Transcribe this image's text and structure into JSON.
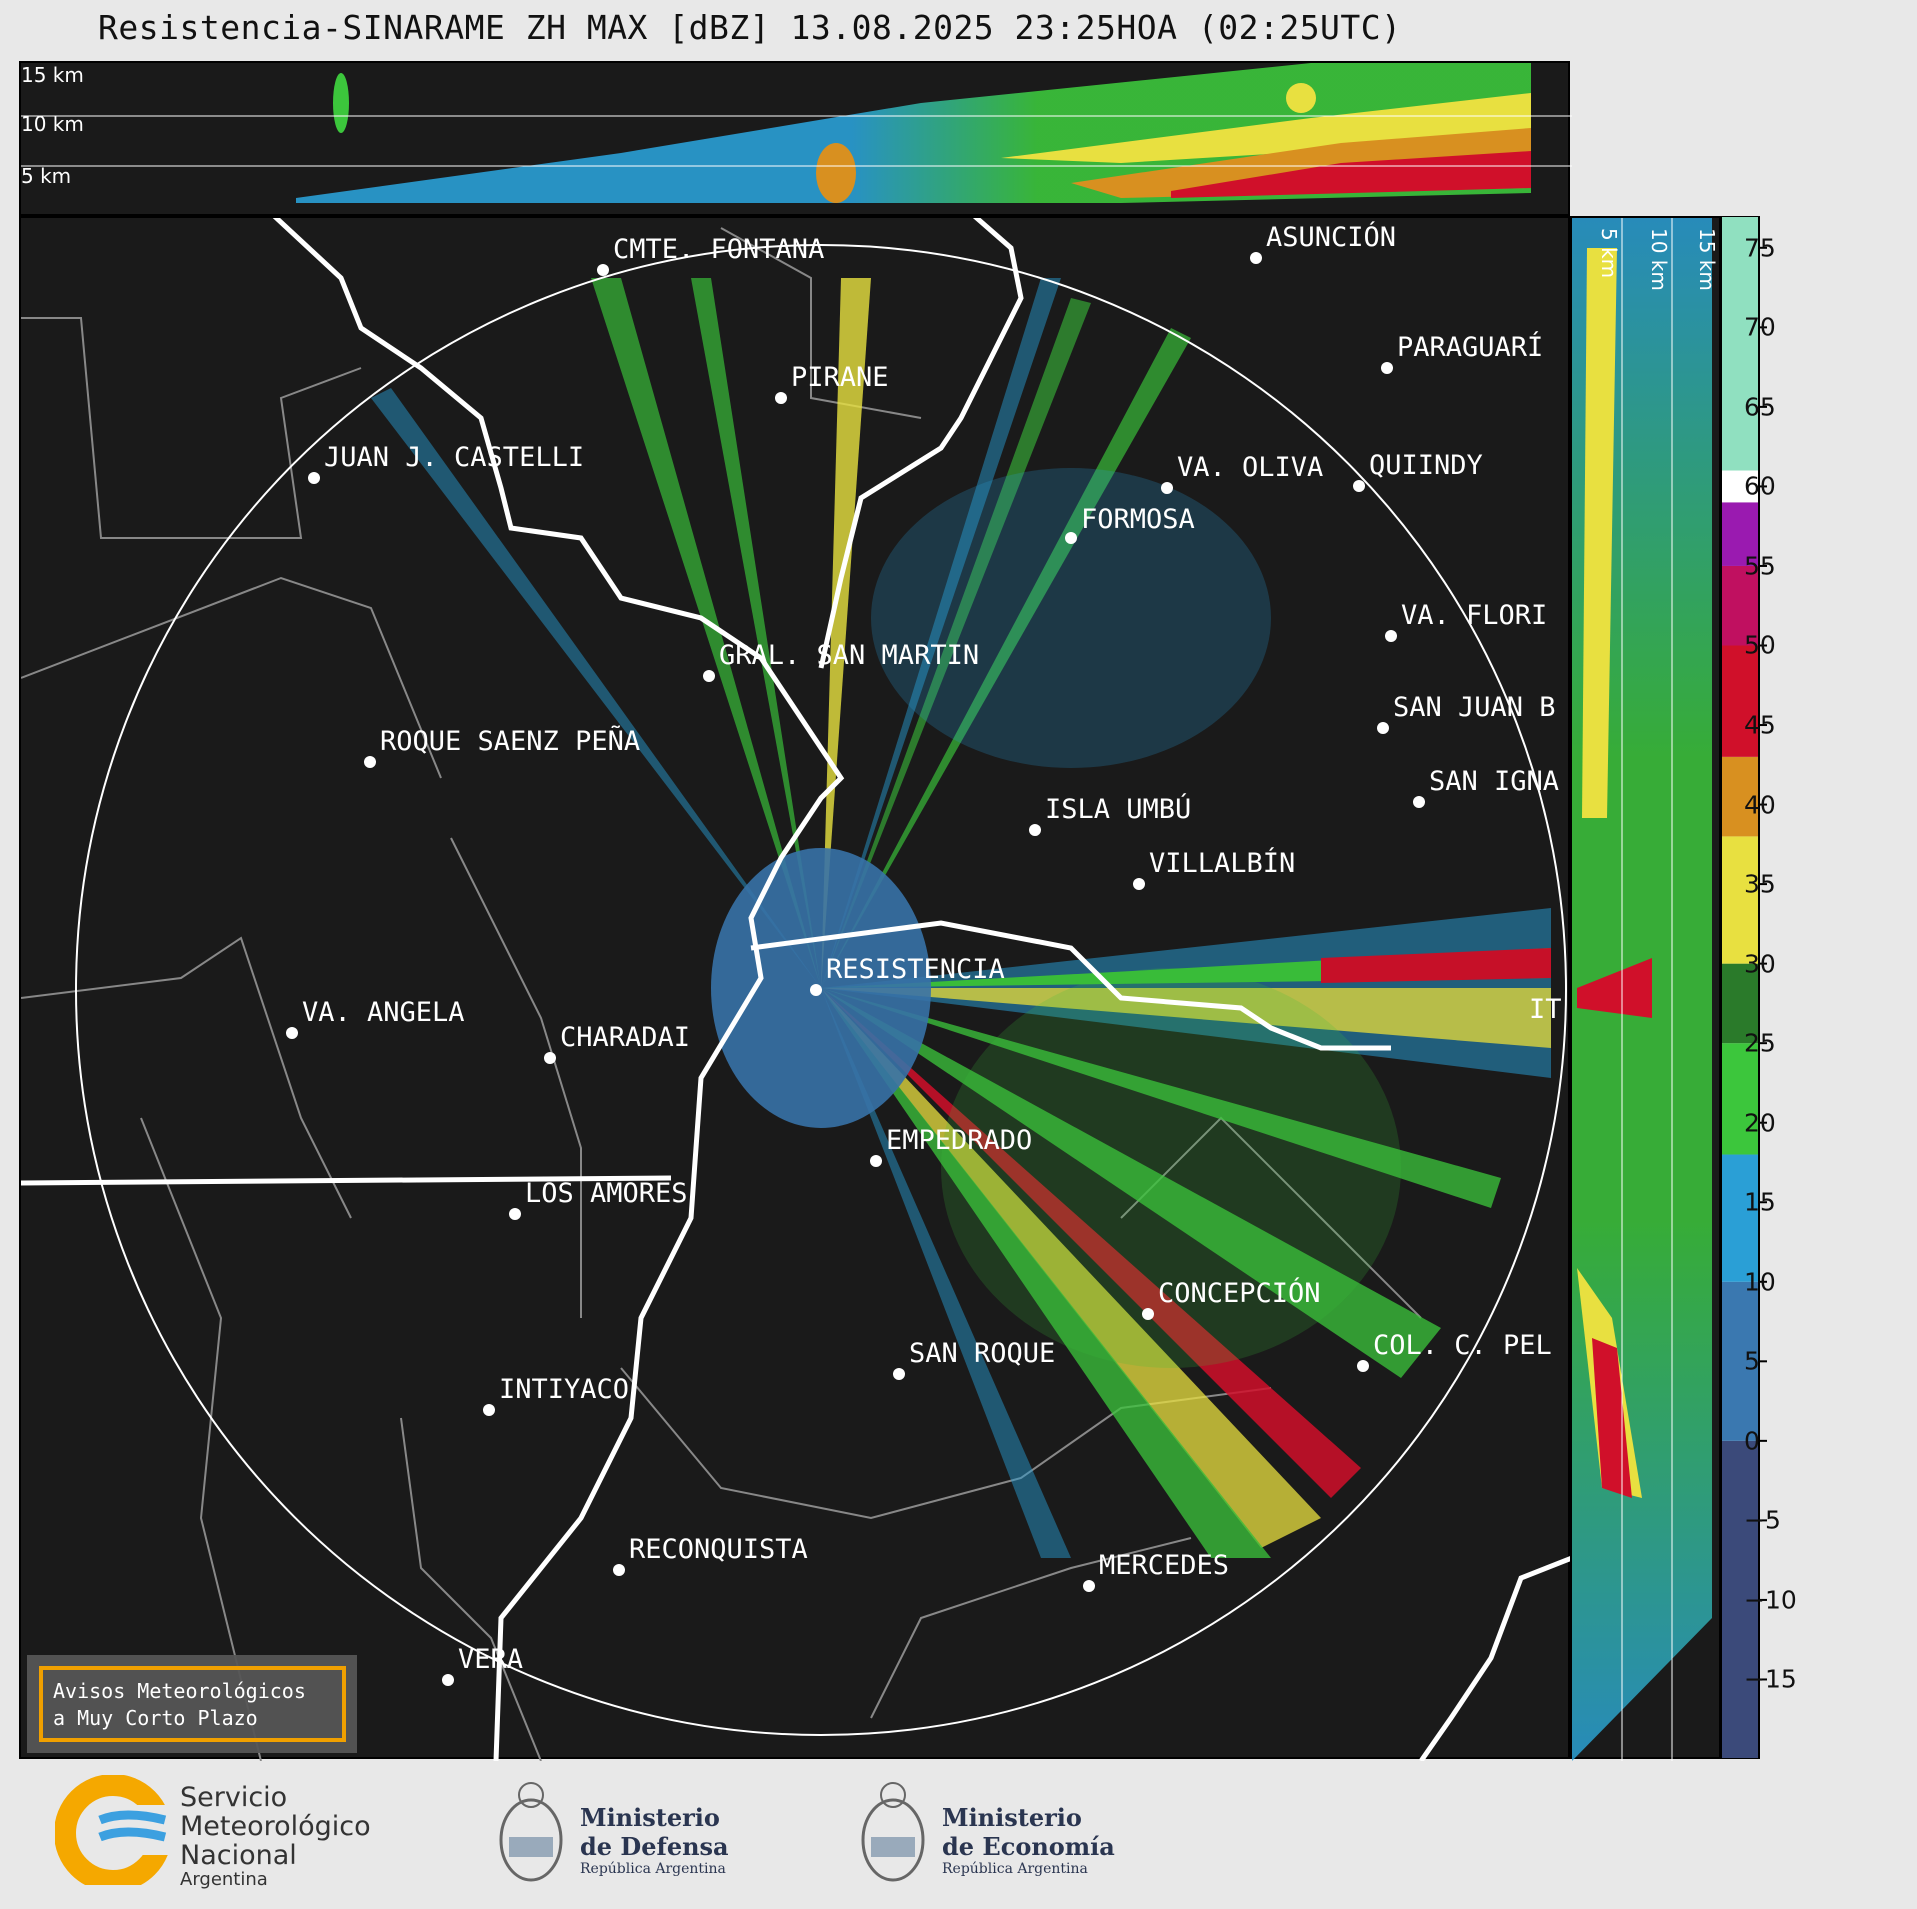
{
  "title": "Resistencia-SINARAME ZH MAX [dBZ] 13.08.2025 23:25HOA (02:25UTC)",
  "top_section": {
    "height_labels": [
      "15 km",
      "10 km",
      "5 km"
    ]
  },
  "side_section": {
    "height_labels": [
      "5 km",
      "10 km",
      "15 km"
    ]
  },
  "cities": [
    {
      "name": "CMTE. FONTANA"
    },
    {
      "name": "ASUNCIÓN"
    },
    {
      "name": "PARAGUARÍ"
    },
    {
      "name": "PIRANE"
    },
    {
      "name": "JUAN J. CASTELLI"
    },
    {
      "name": "VA. OLIVA"
    },
    {
      "name": "QUIINDY"
    },
    {
      "name": "FORMOSA"
    },
    {
      "name": "VA. FLORI"
    },
    {
      "name": "GRAL. SAN MARTIN"
    },
    {
      "name": "SAN JUAN B"
    },
    {
      "name": "ROQUE SAENZ PEÑA"
    },
    {
      "name": "SAN IGNA"
    },
    {
      "name": "ISLA UMBÚ"
    },
    {
      "name": "VILLALBÍN"
    },
    {
      "name": "RESISTENCIA"
    },
    {
      "name": "VA. ANGELA"
    },
    {
      "name": "CHARADAI"
    },
    {
      "name": "IT"
    },
    {
      "name": "EMPEDRADO"
    },
    {
      "name": "LOS AMORES"
    },
    {
      "name": "CONCEPCIÓN"
    },
    {
      "name": "COL. C. PEL"
    },
    {
      "name": "SAN ROQUE"
    },
    {
      "name": "INTIYACO"
    },
    {
      "name": "RECONQUISTA"
    },
    {
      "name": "MERCEDES"
    },
    {
      "name": "VERA"
    }
  ],
  "warning_box": {
    "line1": "Avisos Meteorológicos",
    "line2": "a Muy Corto Plazo",
    "border_color": "#f0a000"
  },
  "colorbar": {
    "unit": "dBZ",
    "ticks": [
      "75",
      "70",
      "65",
      "60",
      "55",
      "50",
      "45",
      "40",
      "35",
      "30",
      "25",
      "20",
      "15",
      "10",
      "5",
      "0",
      "−5",
      "−10",
      "−15"
    ],
    "stops": [
      {
        "from": -20,
        "to": 0,
        "color": "#3b4a7a"
      },
      {
        "from": 0,
        "to": 10,
        "color": "#3a78b0"
      },
      {
        "from": 10,
        "to": 18,
        "color": "#2a9fd6"
      },
      {
        "from": 18,
        "to": 25,
        "color": "#3cc63c"
      },
      {
        "from": 25,
        "to": 30,
        "color": "#2a7a2a"
      },
      {
        "from": 30,
        "to": 38,
        "color": "#e8e040"
      },
      {
        "from": 38,
        "to": 43,
        "color": "#d89020"
      },
      {
        "from": 43,
        "to": 50,
        "color": "#d0102a"
      },
      {
        "from": 50,
        "to": 55,
        "color": "#c01060"
      },
      {
        "from": 55,
        "to": 59,
        "color": "#9a1ab0"
      },
      {
        "from": 59,
        "to": 61,
        "color": "#ffffff"
      },
      {
        "from": 61,
        "to": 77,
        "color": "#90e0c0"
      }
    ]
  },
  "logos": {
    "smn_line1": "Servicio",
    "smn_line2": "Meteorológico",
    "smn_line3": "Nacional",
    "smn_line4": "Argentina",
    "defensa_line1": "Ministerio",
    "defensa_line2": "de Defensa",
    "defensa_line3": "República Argentina",
    "economia_line1": "Ministerio",
    "economia_line2": "de Economía",
    "economia_line3": "República Argentina"
  }
}
